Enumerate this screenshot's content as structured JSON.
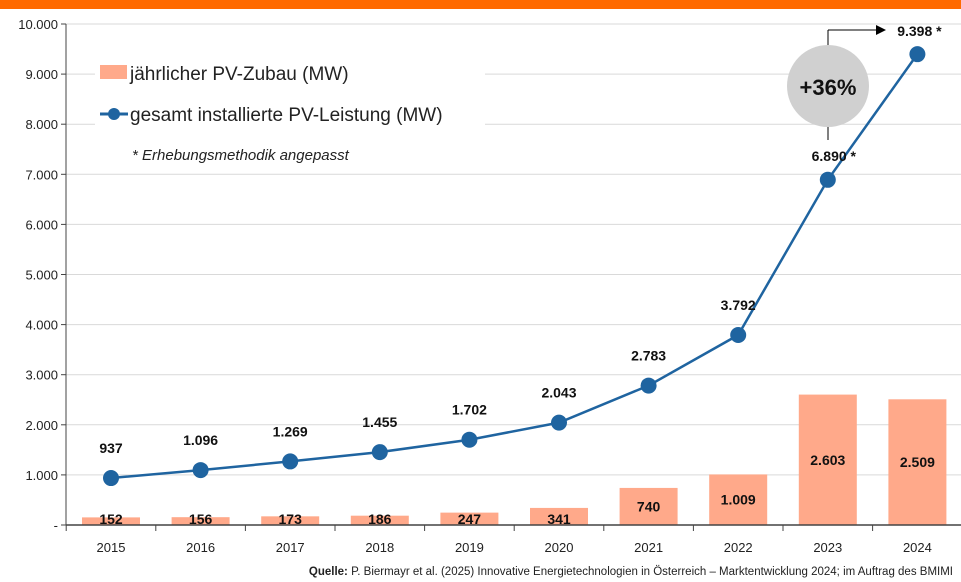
{
  "chart_data": {
    "type": "bar+line",
    "categories": [
      "2015",
      "2016",
      "2017",
      "2018",
      "2019",
      "2020",
      "2021",
      "2022",
      "2023",
      "2024"
    ],
    "series": [
      {
        "name": "jährlicher PV-Zubau (MW)",
        "type": "bar",
        "color": "#ffa98a",
        "values": [
          152,
          156,
          173,
          186,
          247,
          341,
          740,
          1009,
          2603,
          2509
        ],
        "labels": [
          "152",
          "156",
          "173",
          "186",
          "247",
          "341",
          "740",
          "1.009",
          "2.603",
          "2.509"
        ]
      },
      {
        "name": "gesamt installierte PV-Leistung (MW)",
        "type": "line",
        "color": "#1f64a0",
        "values": [
          937,
          1096,
          1269,
          1455,
          1702,
          2043,
          2783,
          3792,
          6890,
          9398
        ],
        "labels": [
          "937",
          "1.096",
          "1.269",
          "1.455",
          "1.702",
          "2.043",
          "2.783",
          "3.792",
          "6.890 *",
          "9.398 *"
        ]
      }
    ],
    "ylim": [
      0,
      10000
    ],
    "yticks": [
      "-",
      "1.000",
      "2.000",
      "3.000",
      "4.000",
      "5.000",
      "6.000",
      "7.000",
      "8.000",
      "9.000",
      "10.000"
    ],
    "grid": true,
    "legend_position": "top-left",
    "note": "* Erhebungsmethodik angepasst",
    "annotation": "+36%"
  },
  "source": {
    "prefix": "Quelle:",
    "text": " P. Biermayr et al. (2025) Innovative Energietechnologien in Österreich – Marktentwicklung 2024; im Auftrag des BMIMI"
  },
  "colors": {
    "accent_bar": "#ff6a00",
    "bubble": "#d0d0d0"
  }
}
